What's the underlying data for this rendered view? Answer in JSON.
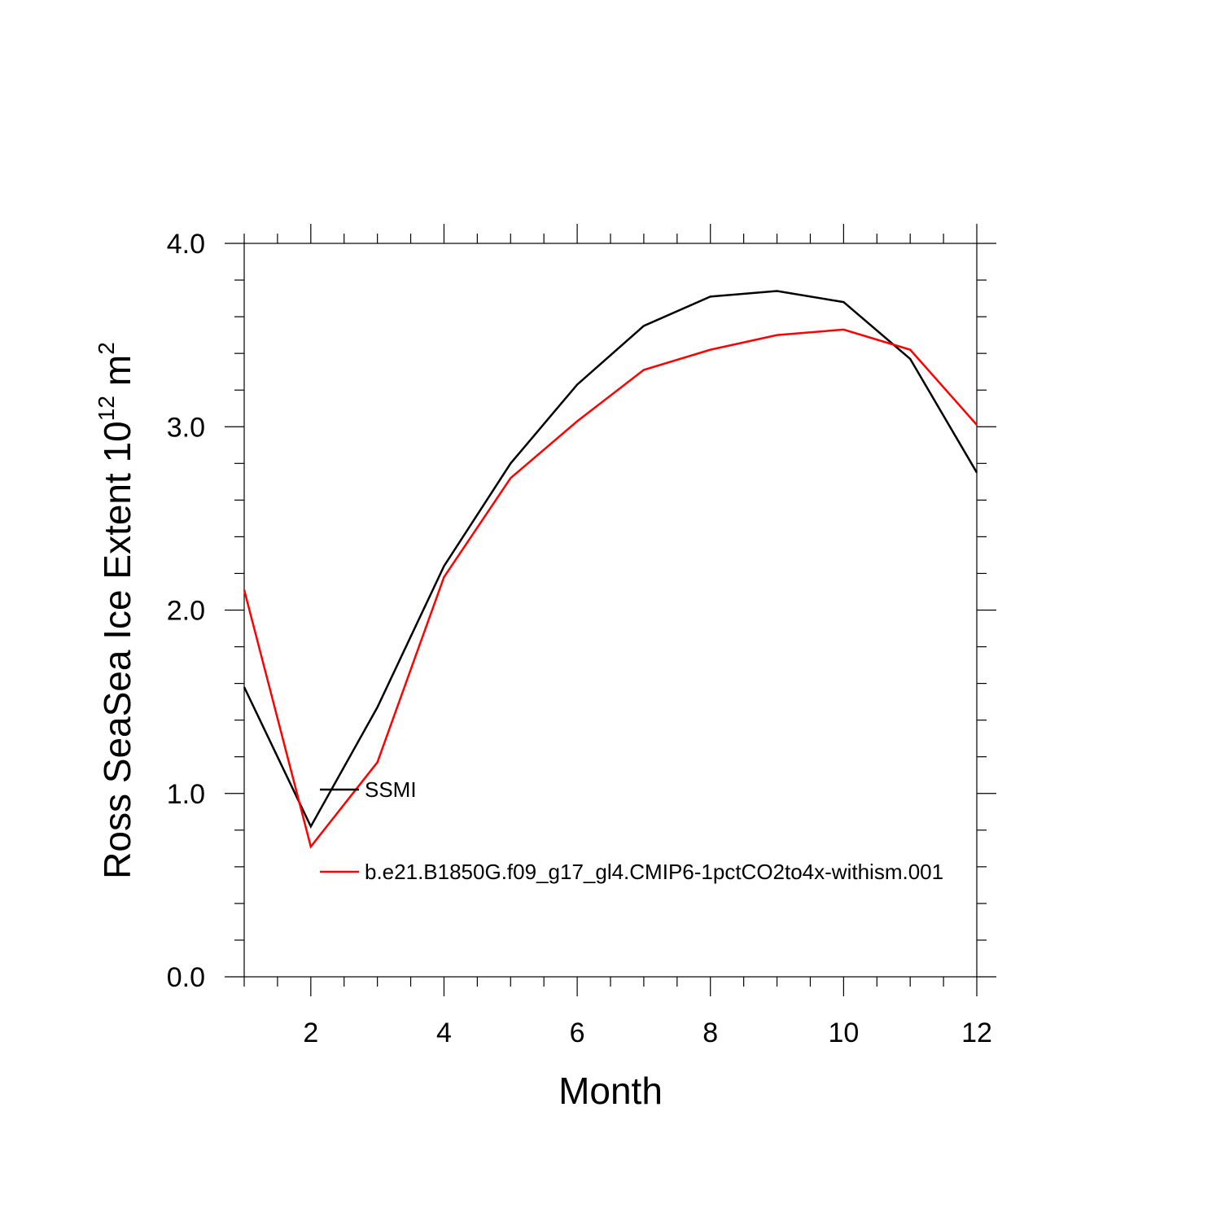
{
  "chart_data": {
    "type": "line",
    "xlabel": "Month",
    "ylabel_main": "Ross SeaSea Ice Extent 10",
    "ylabel_sup": "12",
    "ylabel_unit": "m",
    "ylabel_unit_sup": "2",
    "xlim": [
      1,
      12
    ],
    "ylim": [
      0,
      4
    ],
    "xticks": [
      2,
      4,
      6,
      8,
      10,
      12
    ],
    "xtick_labels": [
      "2",
      "4",
      "6",
      "8",
      "10",
      "12"
    ],
    "yticks": [
      0,
      1,
      2,
      3,
      4
    ],
    "ytick_labels": [
      "0.0",
      "1.0",
      "2.0",
      "3.0",
      "4.0"
    ],
    "x": [
      1,
      2,
      3,
      4,
      5,
      6,
      7,
      8,
      9,
      10,
      11,
      12
    ],
    "series": [
      {
        "name": "SSMI",
        "color": "#000000",
        "values": [
          1.58,
          0.82,
          1.47,
          2.24,
          2.8,
          3.23,
          3.55,
          3.71,
          3.74,
          3.68,
          3.37,
          2.75
        ]
      },
      {
        "name": "b.e21.B1850G.f09_g17_gl4.CMIP6-1pctCO2to4x-withism.001",
        "color": "#ff0000",
        "values": [
          2.11,
          0.71,
          1.17,
          2.18,
          2.72,
          3.03,
          3.31,
          3.42,
          3.5,
          3.53,
          3.42,
          3.01
        ]
      }
    ],
    "legend_placement": "inside-lower-left",
    "grid": false
  }
}
